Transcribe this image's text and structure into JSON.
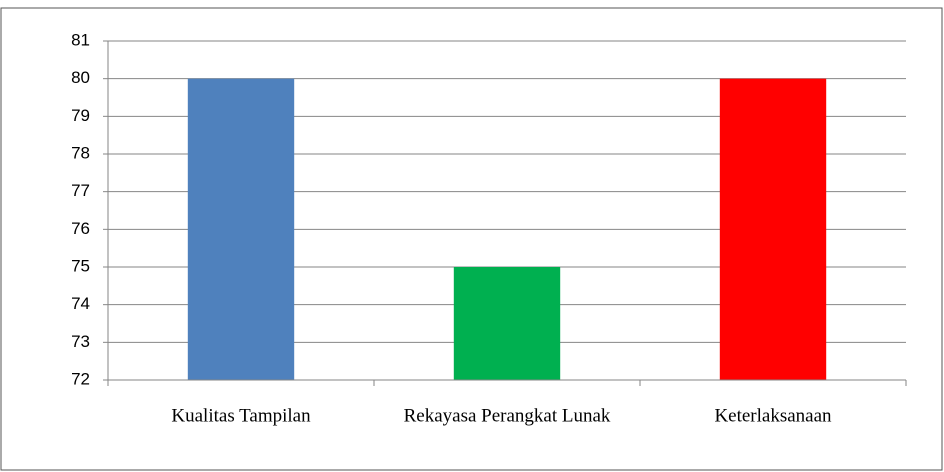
{
  "chart_data": {
    "type": "bar",
    "categories": [
      "Kualitas Tampilan",
      "Rekayasa Perangkat Lunak",
      "Keterlaksanaan"
    ],
    "values": [
      80,
      75,
      80
    ],
    "colors": [
      "#4f81bd",
      "#00b050",
      "#ff0000"
    ],
    "ylim": [
      72,
      81
    ],
    "yticks": [
      72,
      73,
      74,
      75,
      76,
      77,
      78,
      79,
      80,
      81
    ],
    "grid": true
  }
}
